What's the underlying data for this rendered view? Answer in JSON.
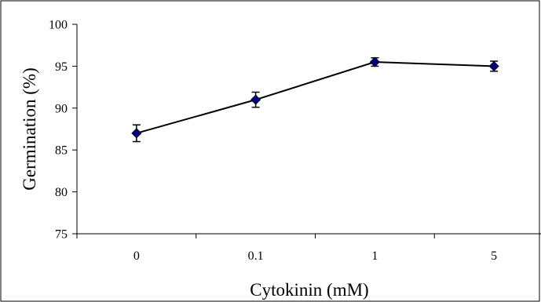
{
  "chart_data": {
    "type": "line",
    "title": "",
    "xlabel": "Cytokinin (mM)",
    "ylabel": "Germination (%)",
    "categories": [
      "0",
      "0.1",
      "1",
      "5"
    ],
    "ylim": [
      75,
      100
    ],
    "yticks": [
      75,
      80,
      85,
      90,
      95,
      100
    ],
    "grid": false,
    "legend": "none",
    "series": [
      {
        "values": [
          87.0,
          91.0,
          95.5,
          95.0
        ],
        "errors": [
          1.0,
          0.9,
          0.5,
          0.6
        ],
        "color": "#00007f",
        "marker": "diamond"
      }
    ]
  }
}
